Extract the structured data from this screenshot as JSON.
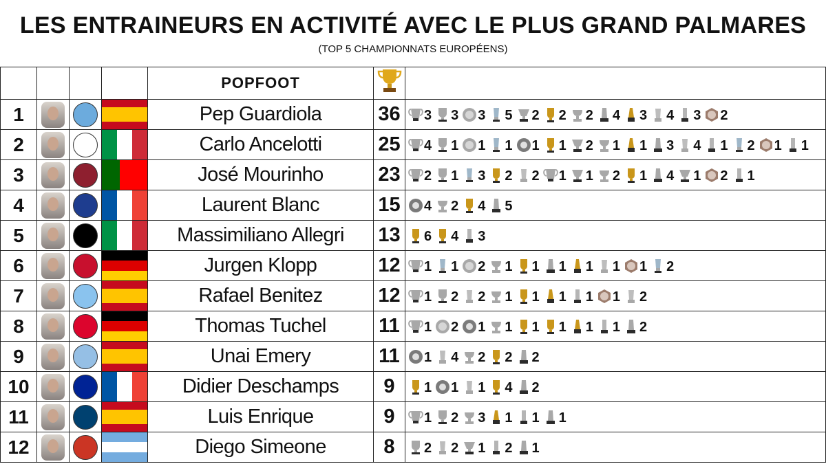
{
  "header": {
    "title": "LES ENTRAINEURS EN ACTIVITÉ AVEC LE PLUS GRAND PALMARES",
    "subtitle": "(TOP 5 CHAMPIONNATS EUROPÉENS)"
  },
  "brand": {
    "logo_text": "POPFOOT"
  },
  "rows": [
    {
      "rank": "1",
      "name": "Pep Guardiola",
      "total": "36",
      "club_color": "#6cabdd",
      "flag": "es",
      "trophies": [
        [
          "cl",
          "3"
        ],
        [
          "lg",
          "3"
        ],
        [
          "plate",
          "3"
        ],
        [
          "pl",
          "5"
        ],
        [
          "cup",
          "2"
        ],
        [
          "gold",
          "2"
        ],
        [
          "silver",
          "2"
        ],
        [
          "sup",
          "4"
        ],
        [
          "club",
          "3"
        ],
        [
          "sup2",
          "4"
        ],
        [
          "sup3",
          "3"
        ],
        [
          "bowl",
          "2"
        ]
      ]
    },
    {
      "rank": "2",
      "name": "Carlo Ancelotti",
      "total": "25",
      "club_color": "#ffffff",
      "flag": "it",
      "trophies": [
        [
          "cl",
          "4"
        ],
        [
          "lg",
          "1"
        ],
        [
          "plate",
          "1"
        ],
        [
          "pl",
          "1"
        ],
        [
          "shield",
          "1"
        ],
        [
          "gold",
          "1"
        ],
        [
          "cup",
          "2"
        ],
        [
          "silver",
          "1"
        ],
        [
          "club",
          "1"
        ],
        [
          "sup",
          "3"
        ],
        [
          "sup2",
          "4"
        ],
        [
          "sup3",
          "1"
        ],
        [
          "pl",
          "2"
        ],
        [
          "bowl",
          "1"
        ],
        [
          "sup3",
          "1"
        ]
      ]
    },
    {
      "rank": "3",
      "name": "José Mourinho",
      "total": "23",
      "club_color": "#8e1f2f",
      "flag": "pt",
      "trophies": [
        [
          "cl",
          "2"
        ],
        [
          "lg",
          "1"
        ],
        [
          "pl",
          "3"
        ],
        [
          "gold",
          "2"
        ],
        [
          "sup2",
          "2"
        ],
        [
          "cl",
          "1"
        ],
        [
          "cup",
          "1"
        ],
        [
          "silver",
          "2"
        ],
        [
          "gold",
          "1"
        ],
        [
          "sup",
          "4"
        ],
        [
          "cup",
          "1"
        ],
        [
          "bowl",
          "2"
        ],
        [
          "sup3",
          "1"
        ]
      ]
    },
    {
      "rank": "4",
      "name": "Laurent Blanc",
      "total": "15",
      "club_color": "#1e3d8f",
      "flag": "fr",
      "trophies": [
        [
          "shield",
          "4"
        ],
        [
          "silver",
          "2"
        ],
        [
          "gold",
          "4"
        ],
        [
          "sup",
          "5"
        ]
      ]
    },
    {
      "rank": "5",
      "name": "Massimiliano Allegri",
      "total": "13",
      "club_color": "#000000",
      "flag": "it",
      "trophies": [
        [
          "gold",
          "6"
        ],
        [
          "gold",
          "4"
        ],
        [
          "sup3",
          "3"
        ]
      ]
    },
    {
      "rank": "6",
      "name": "Jurgen Klopp",
      "total": "12",
      "club_color": "#c8102e",
      "flag": "de",
      "trophies": [
        [
          "cl",
          "1"
        ],
        [
          "pl",
          "1"
        ],
        [
          "plate",
          "2"
        ],
        [
          "silver",
          "1"
        ],
        [
          "gold",
          "1"
        ],
        [
          "sup",
          "1"
        ],
        [
          "club",
          "1"
        ],
        [
          "sup2",
          "1"
        ],
        [
          "bowl",
          "1"
        ],
        [
          "pl",
          "2"
        ]
      ]
    },
    {
      "rank": "7",
      "name": "Rafael Benitez",
      "total": "12",
      "club_color": "#8ac3ee",
      "flag": "es",
      "trophies": [
        [
          "cl",
          "1"
        ],
        [
          "lg",
          "2"
        ],
        [
          "sup2",
          "2"
        ],
        [
          "silver",
          "1"
        ],
        [
          "gold",
          "1"
        ],
        [
          "club",
          "1"
        ],
        [
          "sup3",
          "1"
        ],
        [
          "bowl",
          "1"
        ],
        [
          "sup2",
          "2"
        ]
      ]
    },
    {
      "rank": "8",
      "name": "Thomas Tuchel",
      "total": "11",
      "club_color": "#dc052d",
      "flag": "de",
      "trophies": [
        [
          "cl",
          "1"
        ],
        [
          "plate",
          "2"
        ],
        [
          "shield",
          "1"
        ],
        [
          "silver",
          "1"
        ],
        [
          "gold",
          "1"
        ],
        [
          "gold",
          "1"
        ],
        [
          "club",
          "1"
        ],
        [
          "sup3",
          "1"
        ],
        [
          "sup",
          "2"
        ]
      ]
    },
    {
      "rank": "9",
      "name": "Unai Emery",
      "total": "11",
      "club_color": "#95bfe5",
      "flag": "es",
      "trophies": [
        [
          "shield",
          "1"
        ],
        [
          "sup2",
          "4"
        ],
        [
          "silver",
          "2"
        ],
        [
          "gold",
          "2"
        ],
        [
          "sup",
          "2"
        ]
      ]
    },
    {
      "rank": "10",
      "name": "Didier Deschamps",
      "total": "9",
      "club_color": "#002395",
      "flag": "fr",
      "trophies": [
        [
          "gold",
          "1"
        ],
        [
          "shield",
          "1"
        ],
        [
          "sup2",
          "1"
        ],
        [
          "gold",
          "4"
        ],
        [
          "sup",
          "2"
        ]
      ]
    },
    {
      "rank": "11",
      "name": "Luis Enrique",
      "total": "9",
      "club_color": "#004170",
      "flag": "es",
      "trophies": [
        [
          "cl",
          "1"
        ],
        [
          "lg",
          "2"
        ],
        [
          "silver",
          "3"
        ],
        [
          "club",
          "1"
        ],
        [
          "sup3",
          "1"
        ],
        [
          "sup",
          "1"
        ]
      ]
    },
    {
      "rank": "12",
      "name": "Diego Simeone",
      "total": "8",
      "club_color": "#cb3524",
      "flag": "ar",
      "trophies": [
        [
          "lg",
          "2"
        ],
        [
          "sup2",
          "2"
        ],
        [
          "cup",
          "1"
        ],
        [
          "sup3",
          "2"
        ],
        [
          "sup",
          "1"
        ]
      ]
    }
  ],
  "colors": {
    "gold": "#c9961a",
    "silver": "#9a9a9a",
    "dark": "#2b2b2b"
  }
}
